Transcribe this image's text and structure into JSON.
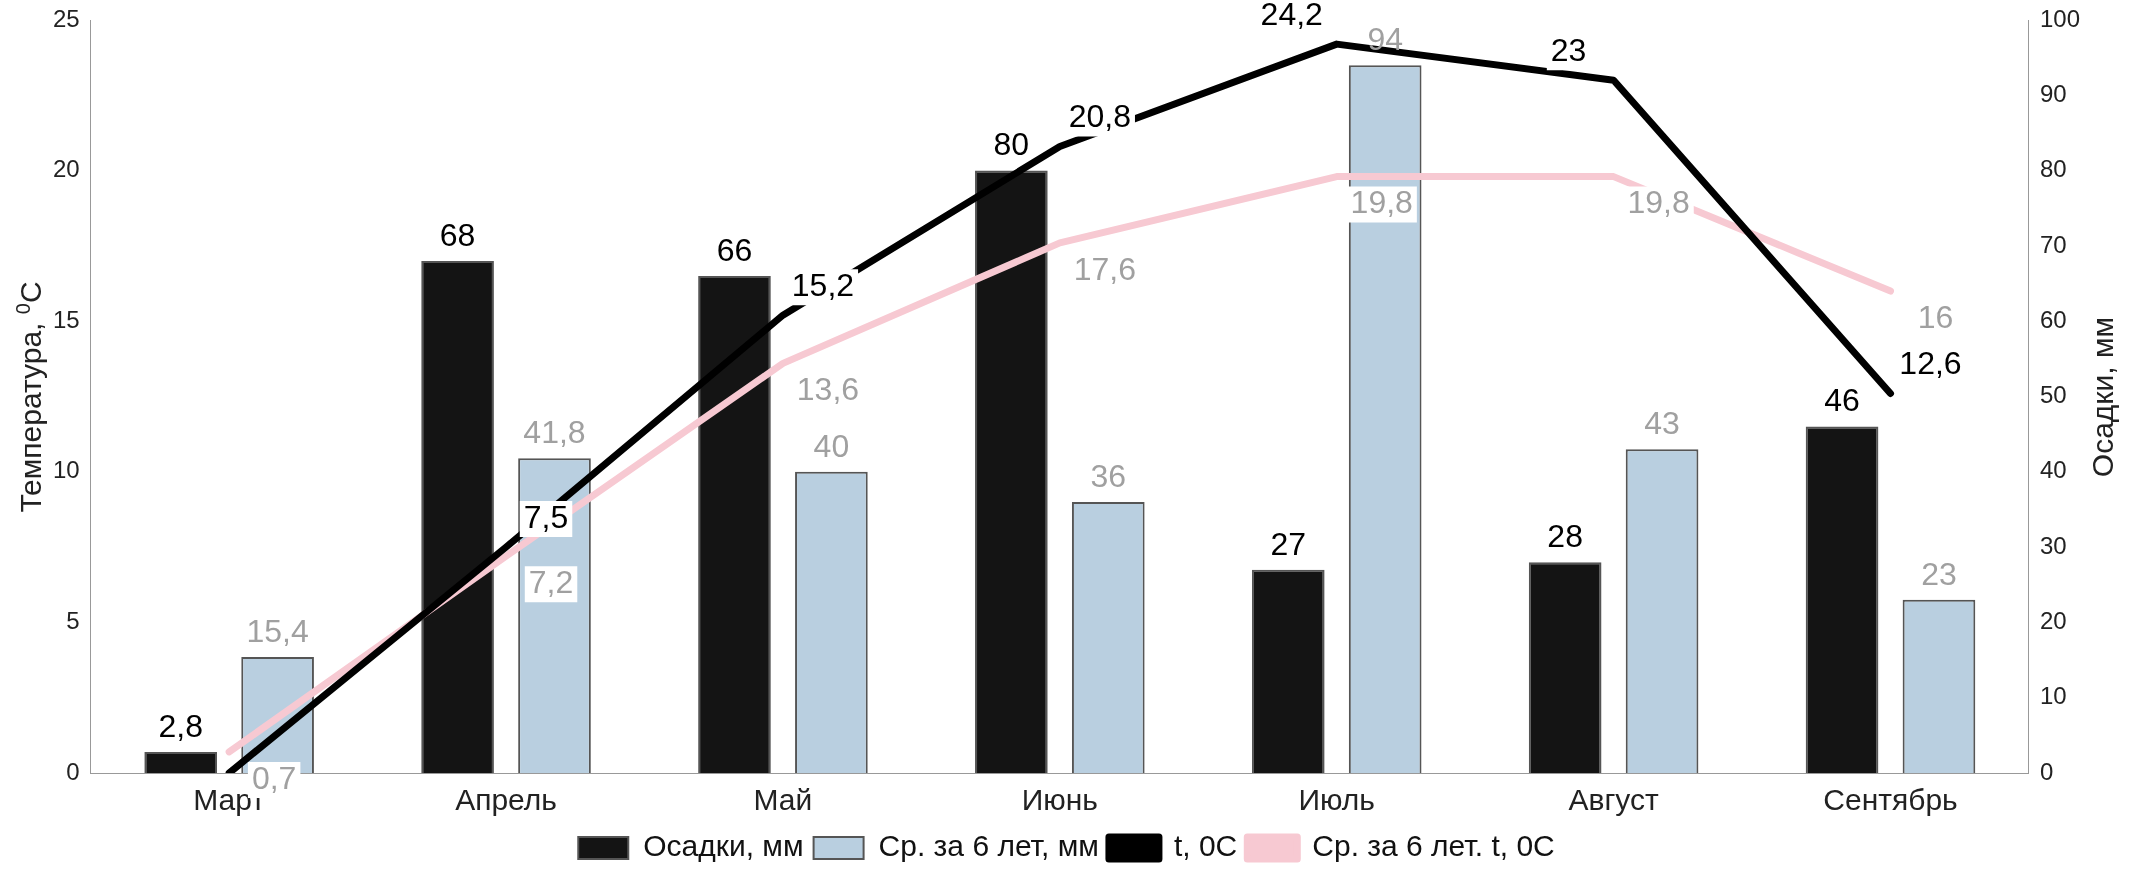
{
  "chart_data": {
    "type": "bar",
    "categories": [
      "Март",
      "Апрель",
      "Май",
      "Июнь",
      "Июль",
      "Август",
      "Сентябрь"
    ],
    "series": [
      {
        "name": "Осадки, мм",
        "axis": "y2",
        "color": "#141414",
        "values": [
          2.8,
          68,
          66,
          80,
          27,
          28,
          46
        ],
        "value_labels": [
          "2,8",
          "68",
          "66",
          "80",
          "27",
          "28",
          "46"
        ]
      },
      {
        "name": "Ср. за 6 лет, мм",
        "axis": "y2",
        "color": "#b9cfe0",
        "values": [
          15.4,
          41.8,
          40,
          36,
          94,
          43,
          23
        ],
        "value_labels": [
          "15,4",
          "41,8",
          "40",
          "36",
          "94",
          "43",
          "23"
        ]
      },
      {
        "name": "t, 0C",
        "type": "line",
        "color": "#000000",
        "values": [
          0,
          7.5,
          15.2,
          20.8,
          24.2,
          23,
          12.6
        ],
        "value_labels": [
          null,
          "7,5",
          "15,2",
          "20,8",
          "24,2",
          "23",
          "12,6"
        ]
      },
      {
        "name": "Ср. за 6 лет. t, 0C",
        "type": "line",
        "color": "#f7c9d2",
        "values": [
          0.7,
          7.2,
          13.6,
          17.6,
          19.8,
          19.8,
          16
        ],
        "value_labels": [
          "0,7",
          "7,2",
          "13,6",
          "17,6",
          "19,8",
          "19,8",
          "16"
        ]
      }
    ],
    "ylabel": "Температура, $^{0}$C",
    "y2label": "Осадки, мм",
    "ylim": [
      0,
      25
    ],
    "yticks": [
      0,
      5,
      10,
      15,
      20,
      25
    ],
    "y2lim": [
      0,
      100
    ],
    "y2ticks": [
      0,
      10,
      20,
      30,
      40,
      50,
      60,
      70,
      80,
      90,
      100
    ],
    "data_labels": true,
    "legend": "bottom",
    "grid": false,
    "marker": "none",
    "line_style": "solid"
  }
}
